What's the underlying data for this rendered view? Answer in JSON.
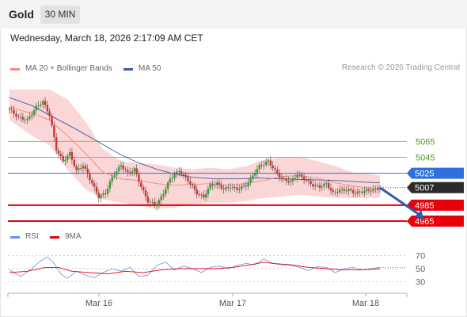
{
  "header": {
    "symbol": "Gold",
    "timeframe": "30 MIN"
  },
  "datetime": "Wednesday, March 18, 2026 2:17:09 AM CET",
  "research": "Research © 2026 Trading Central",
  "colors": {
    "support": "#e8000b",
    "pivot": "#2f6fde",
    "resistance": "#8bc34a",
    "candle_up": "#2e9e2e",
    "candle_down": "#d23232",
    "band": "#f9c8c8",
    "ma50": "#3d5aa8",
    "ma20": "#f08b78",
    "rsi": "#6e8fe6",
    "rsi_ma": "#e8000b",
    "arrow": "#2d5fa8"
  },
  "chart_data": [
    {
      "type": "candlestick",
      "legend": [
        "MA 20 + Bollinger Bands",
        "MA 50"
      ],
      "x_ticks": [
        "Mar 16",
        "Mar 17",
        "Mar 18"
      ],
      "ylim": [
        4954,
        5143
      ],
      "levels": [
        {
          "value": 5065,
          "label": "5065",
          "kind": "resistance"
        },
        {
          "value": 5045,
          "label": "5045",
          "kind": "resistance"
        },
        {
          "value": 5025,
          "label": "5025",
          "kind": "pivot"
        },
        {
          "value": 5007,
          "label": "5007",
          "kind": "last"
        },
        {
          "value": 4985,
          "label": "4985",
          "kind": "support"
        },
        {
          "value": 4965,
          "label": "4965",
          "kind": "support"
        }
      ],
      "close_path": [
        [
          0,
          5105
        ],
        [
          4,
          5095
        ],
        [
          8,
          5092
        ],
        [
          12,
          5108
        ],
        [
          15,
          5115
        ],
        [
          18,
          5098
        ],
        [
          21,
          5055
        ],
        [
          24,
          5040
        ],
        [
          27,
          5050
        ],
        [
          30,
          5028
        ],
        [
          33,
          5035
        ],
        [
          36,
          5018
        ],
        [
          40,
          4995
        ],
        [
          43,
          5000
        ],
        [
          46,
          5020
        ],
        [
          50,
          5035
        ],
        [
          53,
          5025
        ],
        [
          56,
          5030
        ],
        [
          59,
          5008
        ],
        [
          62,
          4990
        ],
        [
          66,
          4985
        ],
        [
          69,
          5000
        ],
        [
          72,
          5018
        ],
        [
          76,
          5028
        ],
        [
          80,
          5016
        ],
        [
          84,
          5000
        ],
        [
          87,
          4995
        ],
        [
          90,
          5010
        ],
        [
          93,
          5012
        ],
        [
          96,
          5005
        ],
        [
          99,
          5008
        ],
        [
          102,
          5005
        ],
        [
          106,
          5010
        ],
        [
          109,
          5022
        ],
        [
          112,
          5034
        ],
        [
          116,
          5040
        ],
        [
          119,
          5028
        ],
        [
          122,
          5018
        ],
        [
          126,
          5014
        ],
        [
          129,
          5024
        ],
        [
          132,
          5018
        ],
        [
          136,
          5010
        ],
        [
          139,
          5008
        ],
        [
          142,
          5012
        ],
        [
          145,
          5000
        ],
        [
          148,
          5004
        ],
        [
          152,
          5004
        ],
        [
          155,
          5000
        ],
        [
          158,
          5002
        ],
        [
          162,
          5004
        ],
        [
          166,
          5006
        ]
      ],
      "ma20_path": [
        [
          0,
          5108
        ],
        [
          10,
          5100
        ],
        [
          18,
          5092
        ],
        [
          26,
          5072
        ],
        [
          34,
          5050
        ],
        [
          42,
          5026
        ],
        [
          50,
          5018
        ],
        [
          58,
          5016
        ],
        [
          66,
          5012
        ],
        [
          74,
          5010
        ],
        [
          82,
          5011
        ],
        [
          90,
          5012
        ],
        [
          98,
          5010
        ],
        [
          106,
          5012
        ],
        [
          114,
          5016
        ],
        [
          122,
          5021
        ],
        [
          130,
          5022
        ],
        [
          138,
          5019
        ],
        [
          146,
          5013
        ],
        [
          154,
          5009
        ],
        [
          162,
          5006
        ],
        [
          166,
          5005
        ]
      ],
      "ma50_path": [
        [
          0,
          5120
        ],
        [
          10,
          5110
        ],
        [
          20,
          5095
        ],
        [
          30,
          5080
        ],
        [
          40,
          5064
        ],
        [
          50,
          5048
        ],
        [
          58,
          5038
        ],
        [
          66,
          5030
        ],
        [
          74,
          5024
        ],
        [
          82,
          5020
        ],
        [
          92,
          5018
        ],
        [
          102,
          5018
        ],
        [
          112,
          5019
        ],
        [
          122,
          5018
        ],
        [
          134,
          5017
        ],
        [
          146,
          5016
        ],
        [
          158,
          5014
        ],
        [
          166,
          5013
        ]
      ],
      "band_upper_path": [
        [
          0,
          5130
        ],
        [
          10,
          5130
        ],
        [
          18,
          5130
        ],
        [
          26,
          5118
        ],
        [
          34,
          5090
        ],
        [
          42,
          5055
        ],
        [
          50,
          5040
        ],
        [
          58,
          5038
        ],
        [
          66,
          5036
        ],
        [
          74,
          5032
        ],
        [
          82,
          5030
        ],
        [
          90,
          5032
        ],
        [
          98,
          5030
        ],
        [
          106,
          5034
        ],
        [
          114,
          5042
        ],
        [
          122,
          5045
        ],
        [
          130,
          5046
        ],
        [
          138,
          5040
        ],
        [
          146,
          5034
        ],
        [
          154,
          5026
        ],
        [
          162,
          5024
        ],
        [
          166,
          5022
        ]
      ],
      "band_lower_path": [
        [
          0,
          5092
        ],
        [
          10,
          5072
        ],
        [
          18,
          5060
        ],
        [
          26,
          5030
        ],
        [
          34,
          5005
        ],
        [
          42,
          4992
        ],
        [
          50,
          4988
        ],
        [
          58,
          4984
        ],
        [
          66,
          4980
        ],
        [
          74,
          4982
        ],
        [
          82,
          4986
        ],
        [
          90,
          4988
        ],
        [
          98,
          4988
        ],
        [
          106,
          4990
        ],
        [
          114,
          4994
        ],
        [
          122,
          4996
        ],
        [
          130,
          4998
        ],
        [
          138,
          4996
        ],
        [
          146,
          4994
        ],
        [
          154,
          4994
        ],
        [
          162,
          4994
        ],
        [
          166,
          4994
        ]
      ],
      "forecast": {
        "from": [
          166,
          5007
        ],
        "to": [
          175,
          4966
        ]
      }
    },
    {
      "type": "line",
      "legend": [
        "RSI",
        "9MA"
      ],
      "ylim": [
        22,
        78
      ],
      "y_ticks": [
        70,
        50,
        30
      ],
      "rsi_path": [
        [
          0,
          48
        ],
        [
          5,
          38
        ],
        [
          10,
          50
        ],
        [
          14,
          62
        ],
        [
          17,
          68
        ],
        [
          20,
          58
        ],
        [
          23,
          42
        ],
        [
          26,
          35
        ],
        [
          30,
          46
        ],
        [
          34,
          40
        ],
        [
          38,
          36
        ],
        [
          42,
          44
        ],
        [
          46,
          50
        ],
        [
          50,
          46
        ],
        [
          54,
          52
        ],
        [
          58,
          38
        ],
        [
          62,
          40
        ],
        [
          66,
          55
        ],
        [
          70,
          60
        ],
        [
          74,
          48
        ],
        [
          78,
          54
        ],
        [
          82,
          50
        ],
        [
          86,
          44
        ],
        [
          90,
          52
        ],
        [
          94,
          54
        ],
        [
          98,
          50
        ],
        [
          102,
          55
        ],
        [
          106,
          58
        ],
        [
          110,
          56
        ],
        [
          114,
          65
        ],
        [
          118,
          58
        ],
        [
          122,
          56
        ],
        [
          126,
          55
        ],
        [
          130,
          52
        ],
        [
          134,
          47
        ],
        [
          138,
          53
        ],
        [
          142,
          52
        ],
        [
          146,
          44
        ],
        [
          150,
          50
        ],
        [
          154,
          52
        ],
        [
          158,
          48
        ],
        [
          162,
          50
        ],
        [
          166,
          52
        ]
      ],
      "rsi_ma_path": [
        [
          0,
          44
        ],
        [
          8,
          46
        ],
        [
          16,
          52
        ],
        [
          22,
          52
        ],
        [
          28,
          46
        ],
        [
          36,
          44
        ],
        [
          44,
          42
        ],
        [
          52,
          46
        ],
        [
          60,
          44
        ],
        [
          68,
          48
        ],
        [
          76,
          50
        ],
        [
          84,
          50
        ],
        [
          92,
          50
        ],
        [
          100,
          52
        ],
        [
          108,
          56
        ],
        [
          114,
          60
        ],
        [
          118,
          58
        ],
        [
          126,
          56
        ],
        [
          134,
          52
        ],
        [
          142,
          50
        ],
        [
          150,
          48
        ],
        [
          158,
          48
        ],
        [
          166,
          50
        ]
      ]
    }
  ]
}
